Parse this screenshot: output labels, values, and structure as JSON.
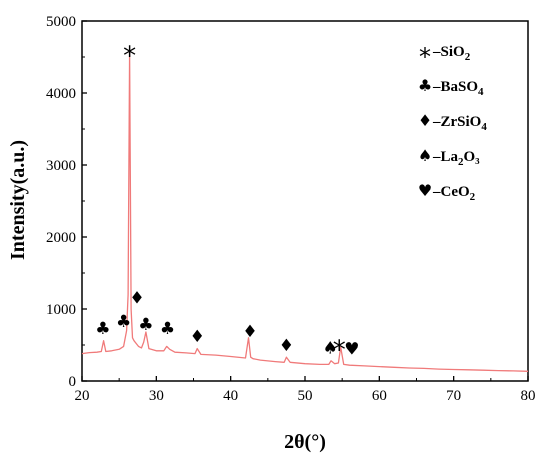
{
  "chart_data": {
    "type": "line",
    "xlabel": "2θ(°)",
    "ylabel": "Intensity(a.u.)",
    "xlim": [
      20,
      80
    ],
    "ylim": [
      0,
      5000
    ],
    "x_ticks": [
      20,
      30,
      40,
      50,
      60,
      70,
      80
    ],
    "y_ticks": [
      0,
      1000,
      2000,
      3000,
      4000,
      5000
    ],
    "grid": false,
    "legend_position": "top-right",
    "line_color": "#f07a7a",
    "series": [
      {
        "x": [
          20.0,
          21.0,
          22.0,
          22.6,
          22.9,
          23.2,
          24.0,
          25.0,
          25.6,
          26.0,
          26.2,
          26.4,
          26.6,
          26.8,
          27.0,
          27.3,
          27.6,
          28.0,
          28.3,
          28.6,
          29.0,
          30.0,
          31.0,
          31.4,
          31.8,
          32.5,
          34.0,
          35.2,
          35.5,
          36.0,
          38.0,
          40.0,
          42.0,
          42.4,
          42.7,
          43.0,
          44.0,
          46.0,
          47.2,
          47.5,
          48.0,
          50.0,
          52.0,
          53.2,
          53.5,
          54.0,
          54.5,
          54.8,
          55.2,
          56.0,
          58.0,
          60.0,
          62.0,
          64.0,
          66.0,
          68.0,
          70.0,
          72.0,
          74.0,
          76.0,
          78.0,
          80.0
        ],
        "y": [
          380,
          395,
          400,
          410,
          560,
          410,
          420,
          440,
          480,
          700,
          1200,
          4560,
          1000,
          600,
          560,
          520,
          480,
          460,
          540,
          680,
          450,
          420,
          420,
          480,
          440,
          400,
          390,
          380,
          450,
          370,
          360,
          340,
          320,
          600,
          330,
          310,
          290,
          270,
          260,
          330,
          260,
          240,
          230,
          230,
          280,
          240,
          250,
          470,
          230,
          220,
          210,
          200,
          190,
          180,
          175,
          165,
          160,
          155,
          150,
          145,
          140,
          135
        ]
      }
    ],
    "annotations": [
      {
        "symbol": "*",
        "x": 26.4,
        "y": 4560
      },
      {
        "symbol": "♣",
        "x": 22.8,
        "y": 580
      },
      {
        "symbol": "♣",
        "x": 25.6,
        "y": 680
      },
      {
        "symbol": "♦",
        "x": 27.4,
        "y": 1010
      },
      {
        "symbol": "♣",
        "x": 28.6,
        "y": 640
      },
      {
        "symbol": "♣",
        "x": 31.5,
        "y": 580
      },
      {
        "symbol": "♦",
        "x": 35.5,
        "y": 470
      },
      {
        "symbol": "♦",
        "x": 42.6,
        "y": 540
      },
      {
        "symbol": "♦",
        "x": 47.5,
        "y": 350
      },
      {
        "symbol": "♠",
        "x": 53.4,
        "y": 310
      },
      {
        "symbol": "*",
        "x": 54.6,
        "y": 480
      },
      {
        "symbol": "♥",
        "x": 56.3,
        "y": 300
      }
    ],
    "legend": [
      {
        "symbol": "*",
        "prefix": "–SiO",
        "sub": "2",
        "suffix": ""
      },
      {
        "symbol": "♣",
        "prefix": "–BaSO",
        "sub": "4",
        "suffix": ""
      },
      {
        "symbol": "♦",
        "prefix": "–ZrSiO",
        "sub": "4",
        "suffix": ""
      },
      {
        "symbol": "♠",
        "prefix": "–La",
        "sub": "2",
        "suffix": "O₃"
      },
      {
        "symbol": "♥",
        "prefix": "–CeO",
        "sub": "2",
        "suffix": ""
      }
    ]
  }
}
